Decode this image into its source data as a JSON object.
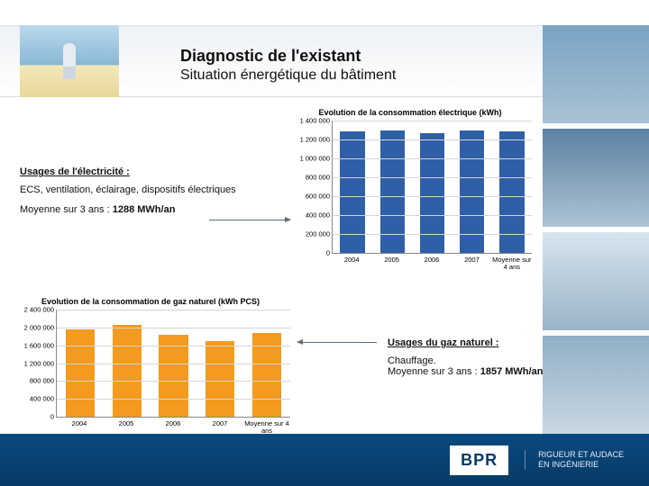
{
  "header": {
    "title": "Diagnostic de l'existant",
    "subtitle": "Situation énergétique du bâtiment"
  },
  "elec_text": {
    "heading": "Usages de l'électricité :",
    "body": "ECS, ventilation, éclairage,  dispositifs électriques",
    "avg_prefix": "Moyenne sur 3 ans : ",
    "avg_value": "1288 MWh/an"
  },
  "gaz_text": {
    "heading": "Usages du gaz naturel :",
    "body": "Chauffage.",
    "avg_prefix": "Moyenne sur 3 ans : ",
    "avg_value": "1857 MWh/an"
  },
  "chart_elec": {
    "type": "bar",
    "title": "Evolution de la consommation électrique (kWh)",
    "categories": [
      "2004",
      "2005",
      "2006",
      "2007",
      "Moyenne sur 4 ans"
    ],
    "values": [
      1290000,
      1300000,
      1270000,
      1300000,
      1290000
    ],
    "bar_color": "#2f5fa7",
    "ylim": [
      0,
      1400000
    ],
    "ytick_step": 200000,
    "yticks": [
      "0",
      "200 000",
      "400 000",
      "600 000",
      "800 000",
      "1 000 000",
      "1 200 000",
      "1 400 000"
    ],
    "grid_color": "#d5d5d5",
    "title_fontsize": 9,
    "tick_fontsize": 7.5
  },
  "chart_gaz": {
    "type": "bar",
    "title": "Evolution de la consommation de gaz naturel (kWh PCS)",
    "categories": [
      "2004",
      "2005",
      "2006",
      "2007",
      "Moyenne sur 4 ans"
    ],
    "values": [
      1950000,
      2060000,
      1830000,
      1700000,
      1880000
    ],
    "bar_color": "#f39a1f",
    "ylim": [
      0,
      2400000
    ],
    "ytick_step": 400000,
    "yticks": [
      "0",
      "400 000",
      "800 000",
      "1 200 000",
      "1 600 000",
      "2 000 000",
      "2 400 000"
    ],
    "grid_color": "#d5d5d5",
    "title_fontsize": 9,
    "tick_fontsize": 7.5
  },
  "footer": {
    "logo": "BPR",
    "slogan_line1": "RIGUEUR ET AUDACE",
    "slogan_line2": "EN INGÉNIERIE"
  },
  "arrows": {
    "elec": {
      "color": "#5b6d7a"
    },
    "gaz": {
      "color": "#5b6d7a"
    }
  }
}
